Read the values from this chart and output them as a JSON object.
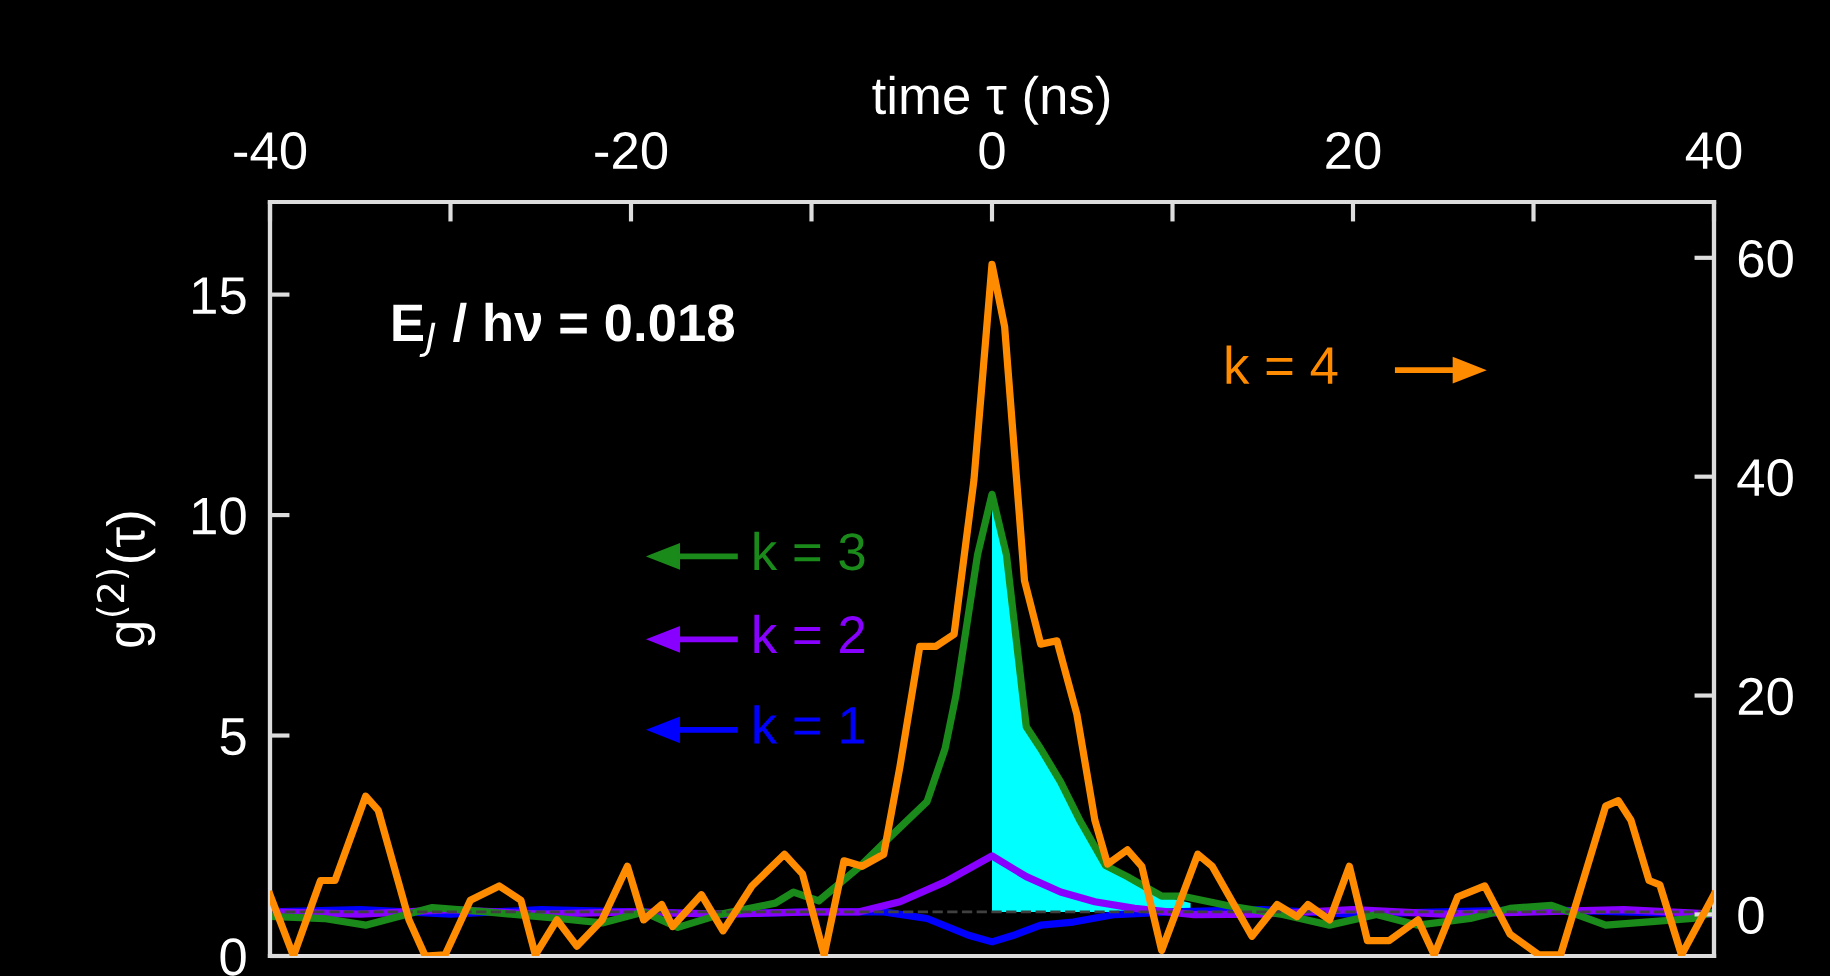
{
  "chart_data": {
    "type": "line",
    "xlabel": "time τ (ns)",
    "ylabel": "g$^{(2)}$(τ)",
    "xlim": [
      -40,
      40
    ],
    "xticks": [
      -40,
      {
        "value": -30,
        "label": null
      },
      -20,
      {
        "value": -10,
        "label": null
      },
      0,
      {
        "value": 10,
        "label": null
      },
      20,
      {
        "value": 30,
        "label": null
      },
      40
    ],
    "ylim": [
      0,
      17.1
    ],
    "yticks": [
      0,
      5,
      10,
      15
    ],
    "y2lim": [
      -3.8,
      65.1
    ],
    "y2ticks": [
      0,
      20,
      40,
      60
    ],
    "grid": false,
    "legend": "left",
    "annotations": [
      "E$_{J}$ / hν = 0.018"
    ],
    "ref_lines": [
      {
        "axis": "y",
        "value": 1,
        "color": "#404040",
        "line_style": "dashed"
      }
    ],
    "series": [
      {
        "type": "area",
        "color": "#00ffff",
        "x": [
          0,
          0.8,
          1.9,
          2.7,
          3.8,
          4.9,
          6.3,
          7.5,
          9.4,
          11.0
        ],
        "values": [
          10.47,
          9.1,
          5.2,
          4.7,
          3.95,
          3.05,
          2.05,
          1.8,
          1.36,
          1.2
        ]
      },
      {
        "name": "k = 1",
        "color": "#0000ff",
        "x": [
          -40,
          -35,
          -30,
          -25,
          -20,
          -15,
          -10,
          -6,
          -3.6,
          -1.3,
          0,
          1.2,
          2.7,
          4.5,
          6.8,
          10,
          15,
          20,
          25,
          30,
          35,
          40
        ],
        "values": [
          1.0,
          1.05,
          0.95,
          1.05,
          1.0,
          0.95,
          1.0,
          1.0,
          0.85,
          0.47,
          0.32,
          0.47,
          0.7,
          0.77,
          0.94,
          1.0,
          1.05,
          0.95,
          1.0,
          1.05,
          1.0,
          0.95
        ]
      },
      {
        "name": "k = 2",
        "color": "#8800ff",
        "x": [
          -40,
          -35,
          -30,
          -25,
          -20,
          -15,
          -10,
          -7.4,
          -5.1,
          -2.6,
          0,
          1.9,
          3.8,
          5.7,
          7.9,
          11.2,
          15,
          20,
          25,
          30,
          35,
          40
        ],
        "values": [
          1.0,
          0.95,
          1.05,
          0.95,
          1.0,
          0.95,
          1.0,
          1.0,
          1.23,
          1.68,
          2.27,
          1.8,
          1.45,
          1.23,
          1.08,
          0.94,
          0.95,
          1.05,
          0.95,
          1.0,
          1.05,
          0.95
        ]
      },
      {
        "name": "k = 3",
        "color": "#1a8a1a",
        "x": [
          -40,
          -37,
          -34.7,
          -31,
          -28,
          -24,
          -21.6,
          -19.3,
          -17.4,
          -15,
          -12,
          -11,
          -9.6,
          -7.4,
          -5.9,
          -3.6,
          -2.6,
          -2.0,
          -0.8,
          0,
          0.8,
          1.9,
          2.7,
          3.8,
          4.9,
          6.3,
          7.5,
          9.4,
          10.5,
          13.1,
          16.1,
          18.7,
          21.3,
          23.6,
          26.5,
          28.7,
          31,
          34,
          36.2,
          38.8,
          40
        ],
        "values": [
          0.9,
          0.85,
          0.7,
          1.1,
          1.0,
          0.85,
          0.75,
          1.0,
          0.65,
          0.95,
          1.2,
          1.45,
          1.25,
          2.0,
          2.6,
          3.5,
          4.7,
          5.9,
          9.1,
          10.47,
          9.1,
          5.2,
          4.7,
          3.95,
          3.05,
          2.05,
          1.8,
          1.36,
          1.36,
          1.14,
          0.94,
          0.7,
          0.94,
          0.7,
          0.85,
          1.08,
          1.15,
          0.7,
          0.77,
          0.85,
          1.0
        ]
      },
      {
        "name": "k = 4",
        "color": "#ff8c00",
        "axis": "y2",
        "x": [
          -40,
          -38.7,
          -37.2,
          -36.4,
          -34.7,
          -34,
          -32.3,
          -31.4,
          -30.3,
          -28.9,
          -27.3,
          -26.1,
          -25.3,
          -24.1,
          -23,
          -21.6,
          -20.2,
          -19.3,
          -18.3,
          -17.7,
          -16.1,
          -14.9,
          -13.3,
          -11.5,
          -10.5,
          -9.3,
          -8.2,
          -7.2,
          -6.0,
          -5.1,
          -4.0,
          -3.1,
          -2.1,
          -1.0,
          0,
          0.7,
          1.8,
          2.7,
          3.6,
          4.7,
          5.7,
          6.4,
          7.5,
          8.3,
          9.4,
          11.4,
          12.2,
          14.4,
          15.8,
          16.9,
          17.5,
          18.7,
          19.8,
          20.8,
          22,
          23.6,
          24.5,
          25.8,
          27.3,
          28.7,
          30.3,
          31.5,
          34,
          34.7,
          35.4,
          36.4,
          37,
          38.2,
          40
        ],
        "values": [
          1.8,
          -3.8,
          3.1,
          3.1,
          10.8,
          9.5,
          -0.5,
          -3.8,
          -3.7,
          1.3,
          2.6,
          1.3,
          -3.7,
          -0.5,
          -2.9,
          -0.5,
          4.4,
          -0.5,
          0.9,
          -1.1,
          1.8,
          -1.5,
          2.6,
          5.5,
          3.7,
          -3.7,
          4.9,
          4.4,
          5.5,
          13.5,
          24.5,
          24.5,
          25.6,
          39.7,
          59.4,
          53.7,
          30.5,
          24.7,
          25,
          18.3,
          8.6,
          4.6,
          5.9,
          4.4,
          -3.3,
          5.5,
          4.4,
          -2.0,
          0.9,
          -0.2,
          0.9,
          -0.5,
          4.4,
          -2.4,
          -2.4,
          -0.5,
          -3.7,
          1.6,
          2.6,
          -1.8,
          -3.7,
          -3.7,
          9.9,
          10.4,
          8.6,
          3.1,
          2.7,
          -3.7,
          1.8
        ]
      }
    ]
  }
}
